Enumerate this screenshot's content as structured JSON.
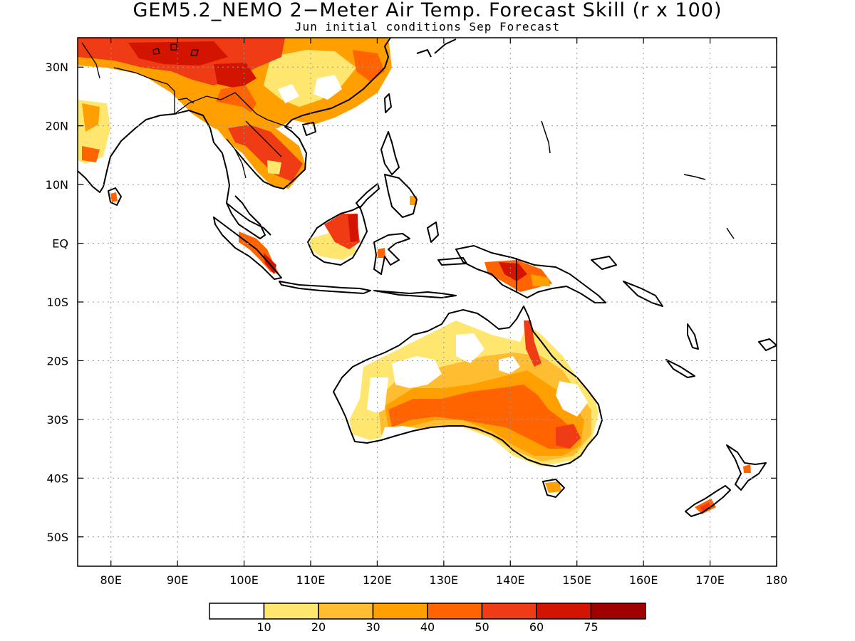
{
  "title": "GEM5.2_NEMO 2−Meter Air Temp. Forecast Skill (r x 100)",
  "subtitle": "Jun initial conditions  Sep Forecast",
  "map": {
    "lon_range": [
      75,
      180
    ],
    "lat_range": [
      -55,
      35
    ],
    "lat_ticks": [
      {
        "lat": 30,
        "label": "30N"
      },
      {
        "lat": 20,
        "label": "20N"
      },
      {
        "lat": 10,
        "label": "10N"
      },
      {
        "lat": 0,
        "label": "EQ"
      },
      {
        "lat": -10,
        "label": "10S"
      },
      {
        "lat": -20,
        "label": "20S"
      },
      {
        "lat": -30,
        "label": "30S"
      },
      {
        "lat": -40,
        "label": "40S"
      },
      {
        "lat": -50,
        "label": "50S"
      }
    ],
    "lon_ticks": [
      {
        "lon": 80,
        "label": "80E"
      },
      {
        "lon": 90,
        "label": "90E"
      },
      {
        "lon": 100,
        "label": "100E"
      },
      {
        "lon": 110,
        "label": "110E"
      },
      {
        "lon": 120,
        "label": "120E"
      },
      {
        "lon": 130,
        "label": "130E"
      },
      {
        "lon": 140,
        "label": "140E"
      },
      {
        "lon": 150,
        "label": "150E"
      },
      {
        "lon": 160,
        "label": "160E"
      },
      {
        "lon": 170,
        "label": "170E"
      },
      {
        "lon": 180,
        "label": "180"
      }
    ],
    "grid": true,
    "grid_style": "dotted"
  },
  "colorbar": {
    "colors": [
      "#ffffff",
      "#ffe66e",
      "#ffbe32",
      "#ffa000",
      "#ff6400",
      "#f03c14",
      "#d21400",
      "#a00000"
    ],
    "labels": [
      "10",
      "20",
      "30",
      "40",
      "50",
      "60",
      "75"
    ]
  },
  "colors": {
    "land_outline": "#000000",
    "ocean": "#ffffff"
  }
}
